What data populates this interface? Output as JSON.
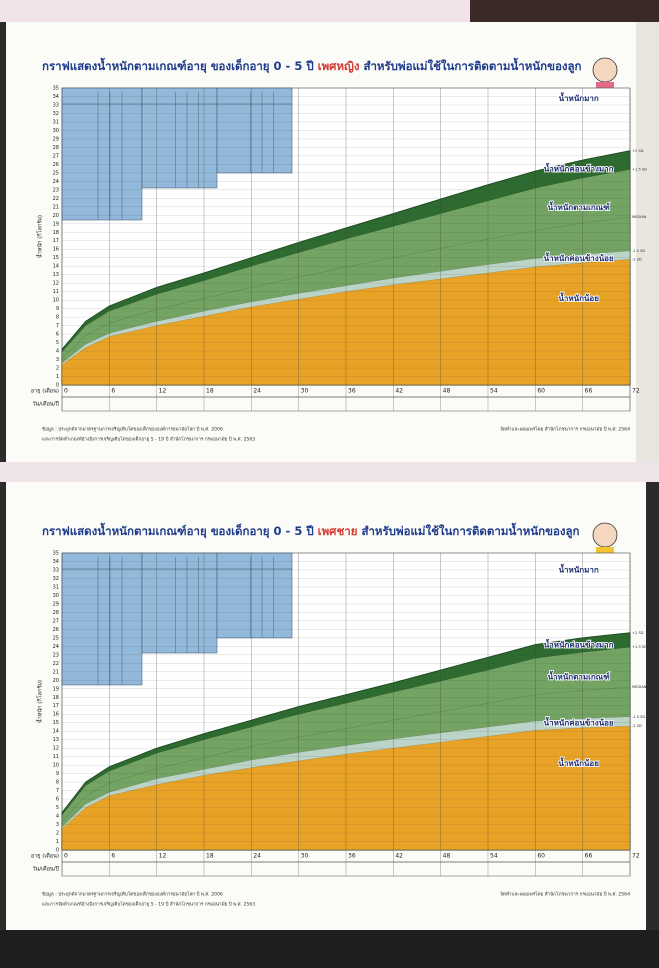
{
  "chart_data": [
    {
      "type": "area",
      "title": [
        "กราฟแสดงน้ำหนักตามเกณฑ์อายุ ของเด็กอายุ 0 - 5 ปี",
        "เพศหญิง",
        "สำหรับพ่อแม่ใช้ในการติดตามน้ำหนักของลูก"
      ],
      "y_label": "น้ำหนัก (กิโลกรัม)",
      "x_label": "อายุ (เดือน)",
      "date_label": "วัน/เดือน/ปี",
      "x": [
        0,
        3,
        6,
        12,
        18,
        24,
        30,
        36,
        42,
        48,
        54,
        60,
        66,
        72
      ],
      "series": [
        {
          "name": "+2 SD",
          "color": "#2e6b30",
          "values": [
            4.2,
            7.5,
            9.3,
            11.5,
            13.2,
            15.0,
            16.8,
            18.5,
            20.2,
            21.9,
            23.6,
            25.2,
            26.5,
            27.6
          ]
        },
        {
          "name": "+1.5 SD",
          "color": "#74a463",
          "values": [
            3.9,
            7.0,
            8.7,
            10.7,
            12.3,
            14.0,
            15.6,
            17.2,
            18.7,
            20.2,
            21.7,
            23.2,
            24.4,
            25.4
          ]
        },
        {
          "name": "MEDIAN",
          "color": "#74a463",
          "values": [
            3.2,
            5.8,
            7.3,
            8.9,
            10.2,
            11.5,
            12.7,
            13.9,
            15.0,
            16.1,
            17.2,
            18.2,
            19.1,
            19.8
          ]
        },
        {
          "name": "-1.5 SD",
          "color": "#bcd4c8",
          "values": [
            2.6,
            4.8,
            6.1,
            7.5,
            8.7,
            9.8,
            10.8,
            11.7,
            12.6,
            13.4,
            14.2,
            14.9,
            15.4,
            15.8
          ]
        },
        {
          "name": "-2 SD",
          "color": "#e8a326",
          "values": [
            2.4,
            4.4,
            5.7,
            7.0,
            8.1,
            9.2,
            10.1,
            11.0,
            11.8,
            12.5,
            13.2,
            13.9,
            14.4,
            14.8
          ]
        }
      ],
      "band_labels": [
        "น้ำหนักมาก",
        "น้ำหนักค่อนข้างมาก",
        "น้ำหนักตามเกณฑ์",
        "น้ำหนักค่อนข้างน้อย",
        "น้ำหนักน้อย"
      ],
      "xlim": [
        0,
        72
      ],
      "xticks": [
        0,
        6,
        12,
        18,
        24,
        30,
        36,
        42,
        48,
        54,
        60,
        66,
        72
      ],
      "ylim": [
        0,
        35
      ],
      "yticks": [
        0,
        1,
        2,
        3,
        4,
        5,
        6,
        7,
        8,
        9,
        10,
        11,
        12,
        13,
        14,
        15,
        16,
        17,
        18,
        19,
        20,
        21,
        22,
        23,
        24,
        25,
        26,
        27,
        28,
        29,
        30,
        31,
        32,
        33,
        34,
        35
      ],
      "grid": true,
      "footnotes": [
        "ข้อมูล : ประยุกต์จากมาตรฐานการเจริญเติบโตของเด็กขององค์การอนามัยโลก ปี พ.ศ. 2006",
        "และการจัดทำเกณฑ์อ้างอิงการเจริญเติบโตของเด็กอายุ 5 - 19 ปี สำนักโภชนาการ กรมอนามัย ปี พ.ศ. 2563"
      ],
      "credit": "จัดทำและเผยแพร่โดย สำนักโภชนาการ กรมอนามัย ปี พ.ศ. 2564"
    },
    {
      "type": "area",
      "title": [
        "กราฟแสดงน้ำหนักตามเกณฑ์อายุ ของเด็กอายุ 0 - 5 ปี",
        "เพศชาย",
        "สำหรับพ่อแม่ใช้ในการติดตามน้ำหนักของลูก"
      ],
      "y_label": "น้ำหนัก (กิโลกรัม)",
      "x_label": "อายุ (เดือน)",
      "date_label": "วัน/เดือน/ปี",
      "x": [
        0,
        3,
        6,
        12,
        18,
        24,
        30,
        36,
        42,
        48,
        54,
        60,
        66,
        72
      ],
      "series": [
        {
          "name": "+2 SD",
          "color": "#2e6b30",
          "values": [
            4.4,
            8.0,
            9.8,
            12.0,
            13.7,
            15.3,
            16.9,
            18.3,
            19.7,
            21.2,
            22.7,
            24.2,
            25.0,
            25.6
          ]
        },
        {
          "name": "+1.5 SD",
          "color": "#74a463",
          "values": [
            4.1,
            7.6,
            9.3,
            11.4,
            13.0,
            14.5,
            16.0,
            17.3,
            18.6,
            19.9,
            21.2,
            22.6,
            23.3,
            23.9
          ]
        },
        {
          "name": "MEDIAN",
          "color": "#74a463",
          "values": [
            3.3,
            6.4,
            7.9,
            9.6,
            10.9,
            12.2,
            13.3,
            14.3,
            15.3,
            16.3,
            17.3,
            18.3,
            18.8,
            19.2
          ]
        },
        {
          "name": "-1.5 SD",
          "color": "#bcd4c8",
          "values": [
            2.7,
            5.4,
            6.8,
            8.4,
            9.5,
            10.6,
            11.5,
            12.3,
            13.1,
            13.8,
            14.5,
            15.2,
            15.5,
            15.7
          ]
        },
        {
          "name": "-2 SD",
          "color": "#e8a326",
          "values": [
            2.5,
            5.0,
            6.4,
            7.7,
            8.8,
            9.7,
            10.5,
            11.3,
            12.0,
            12.7,
            13.4,
            14.1,
            14.4,
            14.6
          ]
        }
      ],
      "band_labels": [
        "น้ำหนักมาก",
        "น้ำหนักค่อนข้างมาก",
        "น้ำหนักตามเกณฑ์",
        "น้ำหนักค่อนข้างน้อย",
        "น้ำหนักน้อย"
      ],
      "xlim": [
        0,
        72
      ],
      "xticks": [
        0,
        6,
        12,
        18,
        24,
        30,
        36,
        42,
        48,
        54,
        60,
        66,
        72
      ],
      "ylim": [
        0,
        35
      ],
      "yticks": [
        0,
        1,
        2,
        3,
        4,
        5,
        6,
        7,
        8,
        9,
        10,
        11,
        12,
        13,
        14,
        15,
        16,
        17,
        18,
        19,
        20,
        21,
        22,
        23,
        24,
        25,
        26,
        27,
        28,
        29,
        30,
        31,
        32,
        33,
        34,
        35
      ],
      "grid": true,
      "footnotes": [
        "ข้อมูล : ประยุกต์จากมาตรฐานการเจริญเติบโตของเด็กขององค์การอนามัยโลก ปี พ.ศ. 2006",
        "และการจัดทำเกณฑ์อ้างอิงการเจริญเติบโตของเด็กอายุ 5 - 19 ปี สำนักโภชนาการ กรมอนามัย ปี พ.ศ. 2563"
      ],
      "credit": "จัดทำและเผยแพร่โดย สำนักโภชนาการ กรมอนามัย ปี พ.ศ. 2564"
    }
  ]
}
